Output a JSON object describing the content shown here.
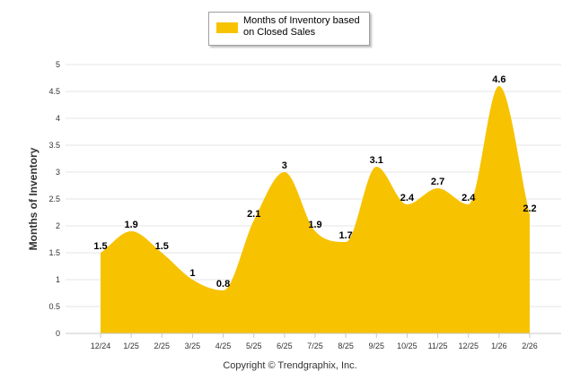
{
  "chart_data": {
    "type": "area",
    "title": "",
    "xlabel": "",
    "ylabel": "Months of Inventory",
    "ylim": [
      0,
      5
    ],
    "yticks": [
      "0",
      "0.5",
      "1",
      "1.5",
      "2",
      "2.5",
      "3",
      "3.5",
      "4",
      "4.5",
      "5"
    ],
    "categories": [
      "12/24",
      "1/25",
      "2/25",
      "3/25",
      "4/25",
      "5/25",
      "6/25",
      "7/25",
      "8/25",
      "9/25",
      "10/25",
      "11/25",
      "12/25",
      "1/26",
      "2/26"
    ],
    "series": [
      {
        "name": "Months of Inventory based on Closed Sales",
        "values": [
          1.5,
          1.9,
          1.5,
          1.0,
          0.8,
          2.1,
          3.0,
          1.9,
          1.7,
          3.1,
          2.4,
          2.7,
          2.4,
          4.6,
          2.2
        ],
        "labels": [
          "1.5",
          "1.9",
          "1.5",
          "1",
          "0.8",
          "2.1",
          "3",
          "1.9",
          "1.7",
          "3.1",
          "2.4",
          "2.7",
          "2.4",
          "4.6",
          "2.2"
        ],
        "color": "#f7c200"
      }
    ],
    "legend": {
      "text": "Months of Inventory based on Closed Sales",
      "placement": "top-center"
    },
    "grid": true
  },
  "footer": {
    "copyright": "Copyright © Trendgraphix, Inc."
  }
}
